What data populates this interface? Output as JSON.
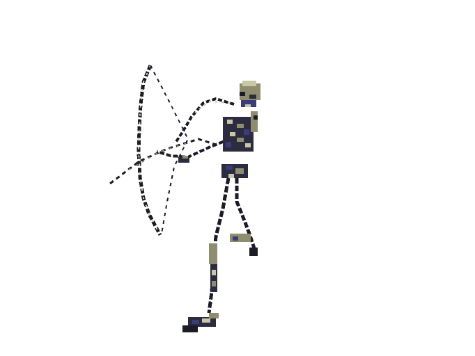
{
  "scene": {
    "background_color": "#ffffff",
    "sprite": {
      "name": "skeleton-archer",
      "palette": {
        "outline": "#1b1c26",
        "bone_light": "#c9c7a8",
        "bone_mid": "#8f8d6e",
        "shade_blue": "#3a3d7a",
        "shade_dark": "#2b2c40"
      }
    }
  }
}
